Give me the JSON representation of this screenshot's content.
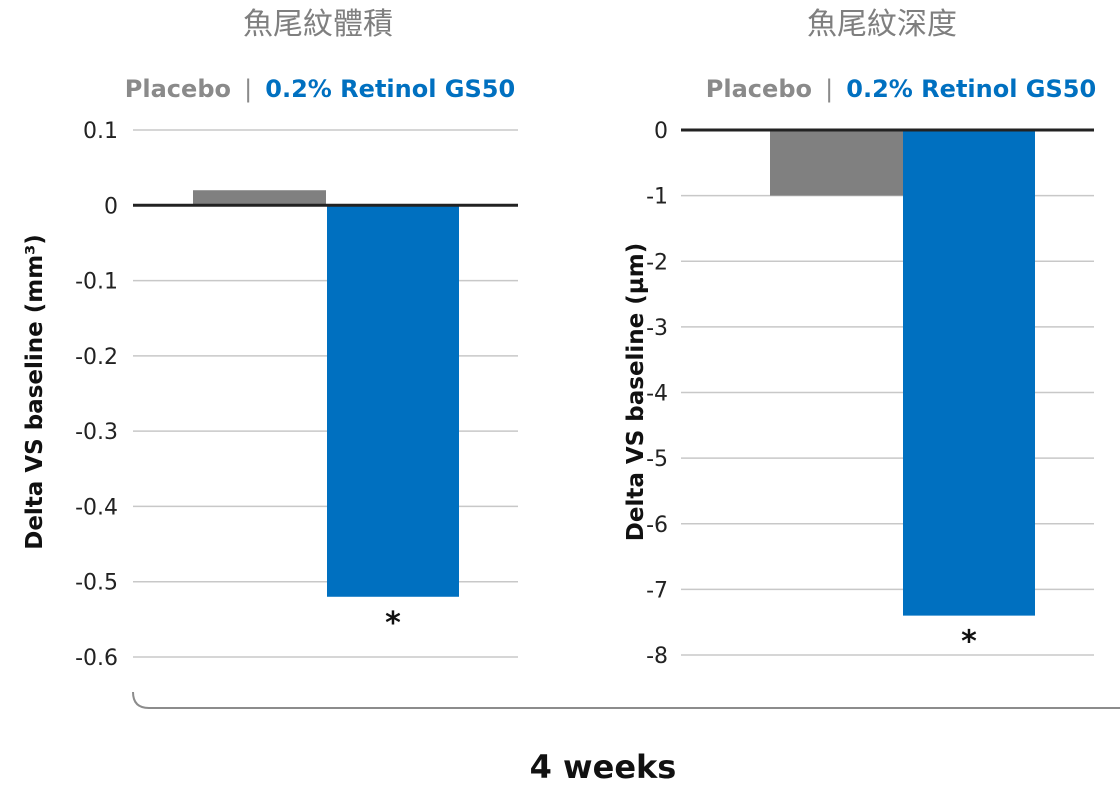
{
  "chart_data": [
    {
      "type": "bar",
      "title": "魚尾紋體積",
      "ylabel": "Delta VS baseline (mm³)",
      "ylim": [
        -0.6,
        0.1
      ],
      "yticks": [
        0.1,
        0,
        -0.1,
        -0.2,
        -0.3,
        -0.4,
        -0.5,
        -0.6
      ],
      "ytick_labels": [
        "0.1",
        "0",
        "-0.1",
        "-0.2",
        "-0.3",
        "-0.4",
        "-0.5",
        "-0.6"
      ],
      "grid": true,
      "legend": [
        "Placebo",
        "0.2% Retinol GS50"
      ],
      "legend_placement": "top",
      "series": [
        {
          "name": "Placebo",
          "values": [
            0.02
          ],
          "color": "#808080"
        },
        {
          "name": "0.2% Retinol GS50",
          "values": [
            -0.52
          ],
          "color": "#0070c0",
          "annotation": "*"
        }
      ]
    },
    {
      "type": "bar",
      "title": "魚尾紋深度",
      "ylabel": "Delta VS baseline (µm)",
      "ylim": [
        -8,
        0
      ],
      "yticks": [
        0,
        -1,
        -2,
        -3,
        -4,
        -5,
        -6,
        -7,
        -8
      ],
      "ytick_labels": [
        "0",
        "-1",
        "-2",
        "-3",
        "-4",
        "-5",
        "-6",
        "-7",
        "-8"
      ],
      "grid": true,
      "legend": [
        "Placebo",
        "0.2% Retinol GS50"
      ],
      "legend_placement": "top",
      "series": [
        {
          "name": "Placebo",
          "values": [
            -1.0
          ],
          "color": "#808080"
        },
        {
          "name": "0.2% Retinol GS50",
          "values": [
            -7.4
          ],
          "color": "#0070c0",
          "annotation": "*"
        }
      ]
    }
  ],
  "legend_separator": "|",
  "footer_label": "4 weeks"
}
